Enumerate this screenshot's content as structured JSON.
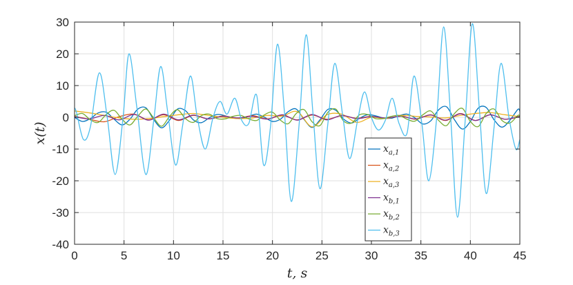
{
  "chart_data": {
    "type": "line",
    "title": "",
    "xlabel": "t, s",
    "ylabel": "x(t)",
    "xlim": [
      0,
      45
    ],
    "ylim": [
      -40,
      30
    ],
    "xticks": [
      "0",
      "5",
      "10",
      "15",
      "20",
      "25",
      "30",
      "35",
      "40",
      "45"
    ],
    "yticks": [
      "-40",
      "-30",
      "-20",
      "-10",
      "0",
      "10",
      "20",
      "30"
    ],
    "grid": true,
    "legend_position": "bottom-right",
    "series": [
      {
        "name": "x_{a,1}",
        "base": "x",
        "sub": "a,1",
        "color": "#0072BD",
        "x": [
          0,
          0.8,
          1.6,
          2.4,
          3.2,
          4.0,
          4.8,
          5.6,
          6.4,
          7.2,
          8.0,
          8.8,
          9.6,
          10.4,
          11.2,
          12.0,
          12.8,
          13.6,
          14.4,
          15.2,
          16.0,
          16.8,
          17.6,
          18.4,
          19.2,
          20.0,
          20.8,
          21.6,
          22.4,
          23.2,
          24.0,
          24.8,
          25.6,
          26.4,
          27.2,
          28.0,
          28.8,
          29.6,
          30.4,
          31.2,
          32.0,
          32.8,
          33.6,
          34.4,
          35.2,
          36.0,
          36.8,
          37.6,
          38.4,
          39.2,
          40.0,
          40.8,
          41.6,
          42.4,
          43.2,
          44.0,
          44.8,
          45.0
        ],
        "y": [
          0.0,
          -1.3,
          -0.4,
          1.4,
          1.6,
          -0.6,
          -2.4,
          -0.6,
          2.6,
          3.0,
          -0.7,
          -3.3,
          -0.9,
          2.6,
          2.1,
          -0.8,
          -1.7,
          -0.2,
          0.9,
          0.5,
          -0.2,
          -0.4,
          0.3,
          1.0,
          0.0,
          -1.3,
          -0.6,
          1.8,
          2.6,
          -0.7,
          -3.2,
          -0.8,
          2.5,
          2.2,
          -0.6,
          -1.8,
          -0.3,
          0.8,
          0.5,
          -0.2,
          -0.3,
          0.5,
          1.0,
          -0.2,
          -2.1,
          -1.1,
          2.4,
          3.3,
          -0.8,
          -3.7,
          -1.3,
          2.9,
          3.1,
          -0.8,
          -3.1,
          -0.9,
          2.5,
          1.9
        ]
      },
      {
        "name": "x_{a,2}",
        "base": "x",
        "sub": "a,2",
        "color": "#D95319",
        "x": [
          0,
          1.5,
          3.0,
          4.5,
          6.0,
          7.5,
          9.0,
          10.5,
          12.0,
          13.5,
          15.0,
          16.5,
          18.0,
          19.5,
          21.0,
          22.5,
          24.0,
          25.5,
          27.0,
          28.5,
          30.0,
          31.5,
          33.0,
          34.5,
          36.0,
          37.5,
          39.0,
          40.5,
          42.0,
          43.5,
          45.0
        ],
        "y": [
          0.3,
          -0.6,
          -1.4,
          0.2,
          1.0,
          -0.8,
          0.8,
          -1.0,
          0.6,
          -0.5,
          0.4,
          -0.3,
          0.5,
          -0.5,
          0.6,
          -0.8,
          0.7,
          -0.6,
          0.5,
          -0.3,
          0.3,
          -0.3,
          0.4,
          -0.6,
          0.8,
          -1.0,
          1.2,
          -1.0,
          0.8,
          -0.6,
          0.2
        ]
      },
      {
        "name": "x_{a,3}",
        "base": "x",
        "sub": "a,3",
        "color": "#EDB120",
        "x": [
          0,
          1.5,
          3.0,
          4.5,
          6.0,
          7.5,
          9.0,
          10.5,
          12.0,
          13.5,
          15.0,
          16.5,
          18.0,
          19.5,
          21.0,
          22.5,
          24.0,
          25.5,
          27.0,
          28.5,
          30.0,
          31.5,
          33.0,
          34.5,
          36.0,
          37.5,
          39.0,
          40.5,
          42.0,
          43.5,
          45.0
        ],
        "y": [
          2.0,
          1.4,
          0.6,
          -0.2,
          -0.6,
          -0.4,
          0.2,
          0.8,
          1.2,
          0.6,
          0.0,
          -0.4,
          -0.2,
          0.6,
          0.4,
          1.8,
          -3.0,
          0.8,
          1.0,
          -1.6,
          0.0,
          -0.4,
          0.6,
          0.3,
          0.1,
          -0.2,
          0.6,
          1.2,
          1.5,
          0.8,
          0.2
        ]
      },
      {
        "name": "x_{b,1}",
        "base": "x",
        "sub": "b,1",
        "color": "#7E2F8E",
        "x": [
          0,
          1.5,
          3.0,
          4.5,
          6.0,
          7.5,
          9.0,
          10.5,
          12.0,
          13.5,
          15.0,
          16.5,
          18.0,
          19.5,
          21.0,
          22.5,
          24.0,
          25.5,
          27.0,
          28.5,
          30.0,
          31.5,
          33.0,
          34.5,
          36.0,
          37.5,
          39.0,
          40.5,
          42.0,
          43.5,
          45.0
        ],
        "y": [
          0.2,
          -0.5,
          0.6,
          -0.8,
          0.9,
          -0.9,
          1.0,
          -0.8,
          0.7,
          -0.5,
          0.3,
          -0.2,
          0.3,
          -0.6,
          0.8,
          -0.9,
          0.9,
          -0.8,
          0.6,
          -0.4,
          0.2,
          -0.2,
          0.3,
          -0.5,
          0.7,
          -0.9,
          1.1,
          -1.0,
          0.8,
          -0.6,
          0.3
        ]
      },
      {
        "name": "x_{b,2}",
        "base": "x",
        "sub": "b,2",
        "color": "#77AC30",
        "x": [
          0,
          0.8,
          1.6,
          2.4,
          3.2,
          4.0,
          4.8,
          5.6,
          6.4,
          7.2,
          8.0,
          8.8,
          9.6,
          10.4,
          11.2,
          12.0,
          12.8,
          13.6,
          14.4,
          15.2,
          16.0,
          16.8,
          17.6,
          18.4,
          19.2,
          20.0,
          20.8,
          21.6,
          22.4,
          23.2,
          24.0,
          24.8,
          25.6,
          26.4,
          27.2,
          28.0,
          28.8,
          29.6,
          30.4,
          31.2,
          32.0,
          32.8,
          33.6,
          34.4,
          35.2,
          36.0,
          36.8,
          37.6,
          38.4,
          39.2,
          40.0,
          40.8,
          41.6,
          42.4,
          43.2,
          44.0,
          44.8,
          45.0
        ],
        "y": [
          0.5,
          1.2,
          -0.8,
          -1.6,
          0.9,
          2.2,
          -0.6,
          -2.4,
          0.4,
          2.6,
          -0.2,
          -2.8,
          0.3,
          2.4,
          -0.4,
          -1.6,
          0.5,
          1.0,
          -0.4,
          -0.5,
          0.3,
          0.6,
          -0.5,
          -1.0,
          0.8,
          1.6,
          -0.9,
          -2.0,
          1.2,
          2.4,
          -1.4,
          -2.6,
          1.6,
          2.6,
          -1.2,
          -1.8,
          0.8,
          0.9,
          -0.4,
          -0.4,
          0.3,
          0.6,
          -0.6,
          -1.2,
          0.8,
          2.0,
          -1.0,
          -2.6,
          1.2,
          2.8,
          -1.3,
          -2.9,
          1.2,
          2.6,
          -1.0,
          -1.8,
          0.6,
          0.2
        ]
      },
      {
        "name": "x_{b,3}",
        "base": "x",
        "sub": "b,3",
        "color": "#4DBEEE",
        "x": [
          0,
          0.2,
          0.9,
          1.6,
          2.5,
          3.3,
          4.1,
          4.9,
          5.5,
          6.3,
          7.2,
          8.0,
          8.7,
          9.4,
          10.2,
          10.9,
          11.7,
          12.4,
          13.2,
          14.0,
          14.7,
          15.4,
          16.2,
          16.9,
          17.6,
          18.4,
          19.1,
          19.8,
          20.5,
          21.2,
          21.9,
          22.7,
          23.4,
          24.1,
          24.8,
          25.6,
          26.3,
          27.1,
          27.8,
          28.6,
          29.3,
          30.0,
          30.7,
          31.4,
          32.1,
          32.8,
          33.6,
          34.3,
          35.1,
          35.8,
          36.6,
          37.3,
          38.0,
          38.7,
          39.5,
          40.2,
          40.9,
          41.6,
          42.4,
          43.1,
          43.9,
          44.6,
          45.0
        ],
        "y": [
          3.0,
          1.5,
          -7.0,
          -3.0,
          14.0,
          0.0,
          -18.0,
          0.0,
          20.0,
          3.0,
          -18.0,
          -1.0,
          16.0,
          2.0,
          -15.0,
          -3.0,
          13.0,
          0.0,
          -10.0,
          0.0,
          5.0,
          1.0,
          6.0,
          -1.0,
          -2.0,
          7.0,
          -15.0,
          -3.0,
          23.0,
          2.0,
          -26.5,
          -2.0,
          26.0,
          1.0,
          -22.5,
          -2.0,
          17.0,
          0.5,
          -13.0,
          -1.0,
          8.0,
          0.0,
          -4.0,
          -1.0,
          6.0,
          -2.0,
          -5.0,
          13.0,
          -2.0,
          -20.0,
          0.0,
          28.5,
          0.5,
          -31.5,
          0.0,
          29.5,
          3.0,
          -24.0,
          -3.0,
          17.0,
          0.0,
          -10.0,
          -7.0
        ]
      }
    ]
  }
}
